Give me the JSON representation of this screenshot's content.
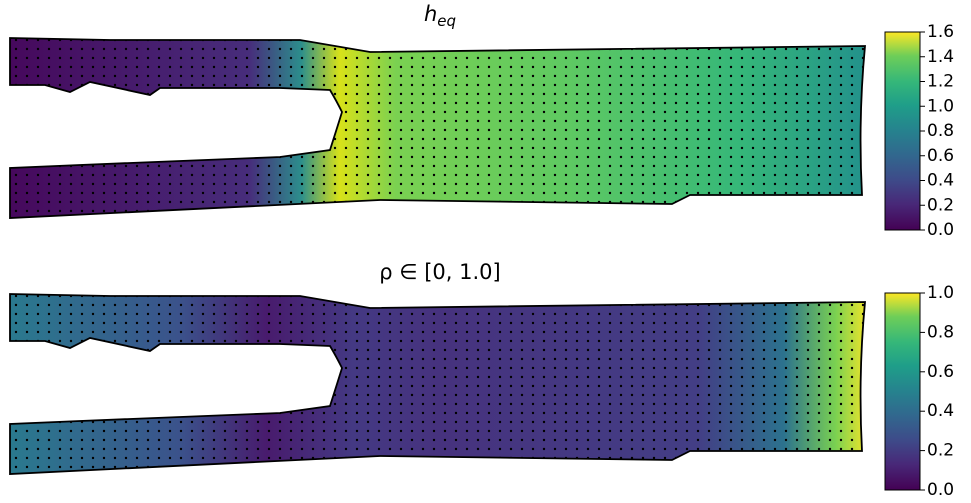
{
  "chart_data": [
    {
      "type": "field",
      "title": "h",
      "title_subscript": "eq",
      "colormap": "viridis",
      "clim": [
        0,
        1.6
      ],
      "cticks": [
        {
          "value": 0,
          "label": "0.0"
        },
        0.2,
        0.4,
        0.6,
        0.8,
        {
          "value": 1,
          "label": "1.0"
        },
        1.2,
        1.4,
        1.6
      ]
    },
    {
      "type": "field",
      "title": "ρ ∈ [0, 1.0]",
      "colormap": "viridis",
      "clim": [
        0,
        1
      ],
      "cticks": [
        {
          "value": 0,
          "label": "0.0"
        },
        0.2,
        0.4,
        0.6,
        0.8,
        {
          "value": 1,
          "label": "1.0"
        }
      ]
    }
  ]
}
